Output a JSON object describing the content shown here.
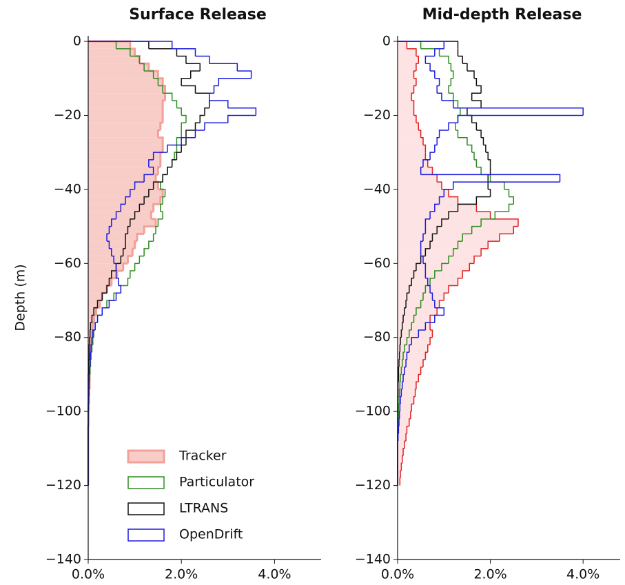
{
  "chart_data": [
    {
      "type": "histogram",
      "orientation": "horizontal",
      "title": "Surface Release",
      "ylabel": "Depth (m)",
      "xlim": [
        0,
        5
      ],
      "ylim": [
        -140,
        1.5
      ],
      "xticks": [
        {
          "value": 0,
          "label": "0.0%"
        },
        {
          "value": 2,
          "label": "2.0%"
        },
        {
          "value": 4,
          "label": "4.0%"
        }
      ],
      "yticks": [
        0,
        {
          "value": -20,
          "label": "−20"
        },
        {
          "value": -40,
          "label": "−40"
        },
        {
          "value": -60,
          "label": "−60"
        },
        {
          "value": -80,
          "label": "−80"
        },
        {
          "value": -100,
          "label": "−100"
        },
        {
          "value": -120,
          "label": "−120"
        },
        {
          "value": -140,
          "label": "−140"
        }
      ],
      "legend": "lower right",
      "bins": [
        0,
        -2,
        -4,
        -6,
        -8,
        -10,
        -12,
        -14,
        -16,
        -18,
        -20,
        -22,
        -24,
        -26,
        -28,
        -30,
        -32,
        -34,
        -36,
        -38,
        -40,
        -42,
        -44,
        -46,
        -48,
        -50,
        -52,
        -54,
        -56,
        -58,
        -60,
        -62,
        -64,
        -66,
        -68,
        -70,
        -72,
        -74,
        -76,
        -78,
        -80,
        -82,
        -84,
        -86,
        -88,
        -90,
        -92,
        -94,
        -96,
        -98,
        -100,
        -102,
        -104,
        -106,
        -108,
        -110,
        -112,
        -114,
        -116,
        -118,
        -120
      ],
      "series": [
        {
          "name": "Tracker",
          "color": "#f4a09a",
          "fill": "#f8cdc8",
          "values": [
            0.9,
            1.0,
            1.1,
            1.3,
            1.5,
            1.6,
            1.65,
            1.65,
            1.6,
            1.6,
            1.6,
            1.55,
            1.5,
            1.6,
            1.6,
            1.55,
            1.55,
            1.5,
            1.45,
            1.5,
            1.6,
            1.55,
            1.4,
            1.35,
            1.45,
            1.2,
            1.05,
            1.0,
            0.95,
            0.85,
            0.75,
            0.62,
            0.5,
            0.4,
            0.3,
            0.25,
            0.17,
            0.13,
            0.1,
            0.08,
            0.06,
            0.05,
            0.05,
            0.04,
            0.03,
            0.03,
            0.03,
            0.02,
            0.02,
            0.01,
            0.01,
            0.01,
            0,
            0,
            0,
            0,
            0,
            0,
            0,
            0
          ]
        },
        {
          "name": "Particulator",
          "color": "#2e8b22",
          "values": [
            0.6,
            0.9,
            1.1,
            1.2,
            1.4,
            1.5,
            1.6,
            1.8,
            1.9,
            2.0,
            2.1,
            2.0,
            2.0,
            1.9,
            1.9,
            1.85,
            1.8,
            1.7,
            1.6,
            1.55,
            1.65,
            1.6,
            1.55,
            1.6,
            1.5,
            1.45,
            1.4,
            1.3,
            1.2,
            1.1,
            1.0,
            0.9,
            0.85,
            0.7,
            0.55,
            0.4,
            0.3,
            0.2,
            0.15,
            0.12,
            0.1,
            0.08,
            0.06,
            0.05,
            0.04,
            0.03,
            0.02,
            0.02,
            0.01,
            0.01,
            0,
            0,
            0,
            0,
            0,
            0,
            0,
            0,
            0,
            0
          ]
        },
        {
          "name": "LTRANS",
          "color": "#111111",
          "values": [
            1.3,
            1.9,
            2.1,
            2.4,
            2.2,
            2.0,
            2.3,
            2.6,
            2.6,
            2.5,
            2.4,
            2.3,
            2.1,
            2.1,
            2.0,
            1.9,
            1.8,
            1.7,
            1.6,
            1.4,
            1.3,
            1.2,
            1.1,
            1.0,
            0.9,
            0.85,
            0.8,
            0.8,
            0.75,
            0.7,
            0.6,
            0.5,
            0.45,
            0.4,
            0.3,
            0.2,
            0.12,
            0.08,
            0.05,
            0.04,
            0.03,
            0.02,
            0.02,
            0.01,
            0.01,
            0,
            0,
            0,
            0,
            0,
            0,
            0,
            0,
            0,
            0,
            0,
            0,
            0,
            0,
            0
          ]
        },
        {
          "name": "OpenDrift",
          "color": "#1a1adf",
          "values": [
            1.8,
            2.3,
            2.6,
            3.2,
            3.5,
            2.8,
            2.7,
            2.6,
            3.0,
            3.6,
            3.0,
            2.5,
            2.3,
            2.0,
            1.7,
            1.4,
            1.3,
            1.4,
            1.2,
            1.0,
            0.9,
            0.8,
            0.7,
            0.6,
            0.5,
            0.45,
            0.4,
            0.45,
            0.5,
            0.55,
            0.6,
            0.6,
            0.65,
            0.7,
            0.6,
            0.45,
            0.3,
            0.2,
            0.15,
            0.1,
            0.08,
            0.06,
            0.05,
            0.04,
            0.03,
            0.02,
            0.02,
            0.01,
            0.01,
            0,
            0,
            0,
            0,
            0,
            0,
            0,
            0,
            0,
            0,
            0
          ]
        }
      ]
    },
    {
      "type": "histogram",
      "orientation": "horizontal",
      "title": "Mid-depth Release",
      "xlim": [
        0,
        4.8
      ],
      "ylim": [
        -140,
        1.5
      ],
      "xticks": [
        {
          "value": 0,
          "label": "0.0%"
        },
        {
          "value": 2,
          "label": "2.0%"
        },
        {
          "value": 4,
          "label": "4.0%"
        }
      ],
      "yticks": [
        0,
        {
          "value": -20,
          "label": "−20"
        },
        {
          "value": -40,
          "label": "−40"
        },
        {
          "value": -60,
          "label": "−60"
        },
        {
          "value": -80,
          "label": "−80"
        },
        {
          "value": -100,
          "label": "−100"
        },
        {
          "value": -120,
          "label": "−120"
        },
        {
          "value": -140,
          "label": "−140"
        }
      ],
      "bins": [
        0,
        -2,
        -4,
        -6,
        -8,
        -10,
        -12,
        -14,
        -16,
        -18,
        -20,
        -22,
        -24,
        -26,
        -28,
        -30,
        -32,
        -34,
        -36,
        -38,
        -40,
        -42,
        -44,
        -46,
        -48,
        -50,
        -52,
        -54,
        -56,
        -58,
        -60,
        -62,
        -64,
        -66,
        -68,
        -70,
        -72,
        -74,
        -76,
        -78,
        -80,
        -82,
        -84,
        -86,
        -88,
        -90,
        -92,
        -94,
        -96,
        -98,
        -100,
        -102,
        -104,
        -106,
        -108,
        -110,
        -112,
        -114,
        -116,
        -118,
        -120
      ],
      "series": [
        {
          "color": "#e02020",
          "fill": "#fde3e3",
          "values": [
            0.2,
            0.4,
            0.45,
            0.4,
            0.35,
            0.4,
            0.35,
            0.3,
            0.35,
            0.35,
            0.4,
            0.45,
            0.5,
            0.55,
            0.6,
            0.6,
            0.65,
            0.75,
            0.85,
            0.95,
            1.1,
            1.3,
            1.7,
            2.0,
            2.6,
            2.5,
            2.2,
            1.95,
            1.8,
            1.65,
            1.55,
            1.4,
            1.3,
            1.1,
            1.0,
            0.9,
            0.85,
            0.7,
            0.7,
            0.75,
            0.7,
            0.65,
            0.6,
            0.55,
            0.5,
            0.45,
            0.4,
            0.38,
            0.35,
            0.3,
            0.28,
            0.25,
            0.2,
            0.18,
            0.15,
            0.12,
            0.1,
            0.08,
            0.06,
            0.05
          ]
        },
        {
          "color": "#2e8b22",
          "values": [
            0.5,
            0.9,
            1.1,
            1.15,
            1.2,
            1.15,
            1.1,
            1.2,
            1.3,
            1.35,
            1.3,
            1.25,
            1.3,
            1.5,
            1.6,
            1.65,
            1.7,
            1.8,
            2.0,
            2.3,
            2.4,
            2.5,
            2.4,
            2.1,
            1.8,
            1.6,
            1.4,
            1.3,
            1.2,
            1.1,
            0.95,
            0.8,
            0.7,
            0.6,
            0.55,
            0.5,
            0.4,
            0.35,
            0.3,
            0.25,
            0.2,
            0.15,
            0.12,
            0.1,
            0.08,
            0.06,
            0.05,
            0.04,
            0.03,
            0.02,
            0.02,
            0.01,
            0.01,
            0,
            0,
            0,
            0,
            0,
            0,
            0
          ]
        },
        {
          "color": "#111111",
          "values": [
            1.3,
            1.3,
            1.4,
            1.5,
            1.65,
            1.7,
            1.8,
            1.6,
            1.8,
            1.5,
            1.6,
            1.7,
            1.8,
            1.85,
            1.9,
            1.95,
            2.0,
            2.0,
            1.95,
            1.95,
            2.0,
            1.7,
            1.3,
            1.1,
            0.95,
            0.85,
            0.75,
            0.7,
            0.6,
            0.5,
            0.4,
            0.35,
            0.3,
            0.25,
            0.2,
            0.18,
            0.15,
            0.12,
            0.1,
            0.08,
            0.06,
            0.05,
            0.04,
            0.03,
            0.02,
            0.02,
            0.01,
            0.01,
            0,
            0,
            0,
            0,
            0,
            0,
            0,
            0,
            0,
            0,
            0,
            0
          ]
        },
        {
          "color": "#1a1adf",
          "values": [
            1.0,
            0.8,
            0.6,
            0.7,
            0.8,
            0.9,
            0.85,
            0.95,
            1.2,
            4.0,
            1.3,
            1.1,
            0.9,
            0.85,
            0.8,
            0.7,
            0.55,
            0.5,
            3.5,
            1.2,
            1.0,
            0.9,
            0.8,
            0.7,
            0.6,
            0.6,
            0.55,
            0.5,
            0.5,
            0.55,
            0.6,
            0.6,
            0.65,
            0.7,
            0.75,
            0.8,
            1.0,
            0.8,
            0.6,
            0.45,
            0.3,
            0.25,
            0.2,
            0.18,
            0.15,
            0.12,
            0.1,
            0.08,
            0.06,
            0.05,
            0.04,
            0.03,
            0.02,
            0.01,
            0,
            0,
            0,
            0,
            0,
            0
          ]
        }
      ]
    }
  ]
}
